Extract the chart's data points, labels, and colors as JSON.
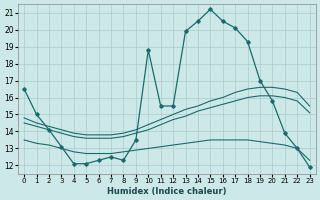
{
  "xlabel": "Humidex (Indice chaleur)",
  "bg_color": "#cce8e8",
  "grid_color": "#aacccc",
  "line_color": "#1a6b6b",
  "x_ticks": [
    0,
    1,
    2,
    3,
    4,
    5,
    6,
    7,
    8,
    9,
    10,
    11,
    12,
    13,
    14,
    15,
    16,
    17,
    18,
    19,
    20,
    21,
    22,
    23
  ],
  "xlim": [
    -0.5,
    23.5
  ],
  "ylim": [
    11.5,
    21.5
  ],
  "y_ticks": [
    12,
    13,
    14,
    15,
    16,
    17,
    18,
    19,
    20,
    21
  ],
  "series": {
    "line1": {
      "x": [
        0,
        1,
        2,
        3,
        4,
        5,
        6,
        7,
        8,
        9,
        10,
        11,
        12,
        13,
        14,
        15,
        16,
        17,
        18,
        19,
        20,
        21,
        22,
        23
      ],
      "y": [
        16.5,
        15.0,
        14.1,
        13.1,
        12.1,
        12.1,
        12.3,
        12.5,
        12.3,
        13.5,
        18.8,
        15.5,
        15.5,
        19.9,
        20.5,
        21.2,
        20.5,
        20.1,
        19.3,
        17.0,
        15.8,
        13.9,
        13.0,
        11.9
      ],
      "marker": "D",
      "markersize": 2.5
    },
    "line2": {
      "x": [
        0,
        1,
        2,
        3,
        4,
        5,
        6,
        7,
        8,
        9,
        10,
        11,
        12,
        13,
        14,
        15,
        16,
        17,
        18,
        19,
        20,
        21,
        22,
        23
      ],
      "y": [
        14.8,
        14.5,
        14.3,
        14.1,
        13.9,
        13.8,
        13.8,
        13.8,
        13.9,
        14.1,
        14.4,
        14.7,
        15.0,
        15.3,
        15.5,
        15.8,
        16.0,
        16.3,
        16.5,
        16.6,
        16.6,
        16.5,
        16.3,
        15.5
      ],
      "marker": null
    },
    "line3": {
      "x": [
        0,
        1,
        2,
        3,
        4,
        5,
        6,
        7,
        8,
        9,
        10,
        11,
        12,
        13,
        14,
        15,
        16,
        17,
        18,
        19,
        20,
        21,
        22,
        23
      ],
      "y": [
        14.5,
        14.3,
        14.1,
        13.9,
        13.7,
        13.6,
        13.6,
        13.6,
        13.7,
        13.9,
        14.1,
        14.4,
        14.7,
        14.9,
        15.2,
        15.4,
        15.6,
        15.8,
        16.0,
        16.1,
        16.1,
        16.0,
        15.8,
        15.1
      ],
      "marker": null
    },
    "line4": {
      "x": [
        0,
        1,
        2,
        3,
        4,
        5,
        6,
        7,
        8,
        9,
        10,
        11,
        12,
        13,
        14,
        15,
        16,
        17,
        18,
        19,
        20,
        21,
        22,
        23
      ],
      "y": [
        13.5,
        13.3,
        13.2,
        13.0,
        12.8,
        12.7,
        12.7,
        12.7,
        12.8,
        12.9,
        13.0,
        13.1,
        13.2,
        13.3,
        13.4,
        13.5,
        13.5,
        13.5,
        13.5,
        13.4,
        13.3,
        13.2,
        13.0,
        12.3
      ],
      "marker": null
    }
  }
}
